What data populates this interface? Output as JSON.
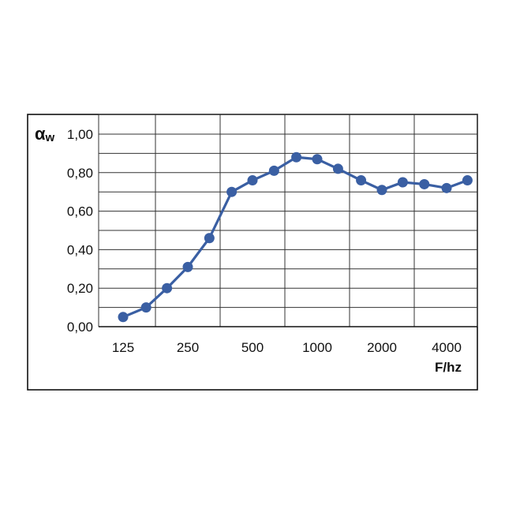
{
  "chart_data": {
    "type": "line",
    "ylabel_symbol": "α",
    "ylabel_subscript": "w",
    "xlabel": "F/hz",
    "x_labeled": [
      125,
      250,
      500,
      1000,
      2000,
      4000
    ],
    "x_tick_labels": [
      "125",
      "250",
      "500",
      "1000",
      "2000",
      "4000"
    ],
    "y_ticks": [
      0.0,
      0.2,
      0.4,
      0.6,
      0.8,
      1.0
    ],
    "y_tick_labels": [
      "0,00",
      "0,20",
      "0,40",
      "0,60",
      "0,80",
      "1,00"
    ],
    "ylim": [
      0,
      1.0
    ],
    "x_scale": "log",
    "grid": true,
    "line_color": "#3a5fa3",
    "series": [
      {
        "x": [
          125,
          160,
          200,
          250,
          315,
          400,
          500,
          630,
          800,
          1000,
          1250,
          1600,
          2000,
          2500,
          3150,
          4000,
          5000
        ],
        "values": [
          0.05,
          0.1,
          0.2,
          0.31,
          0.46,
          0.7,
          0.76,
          0.81,
          0.88,
          0.87,
          0.82,
          0.76,
          0.71,
          0.75,
          0.74,
          0.72,
          0.76
        ]
      }
    ]
  }
}
